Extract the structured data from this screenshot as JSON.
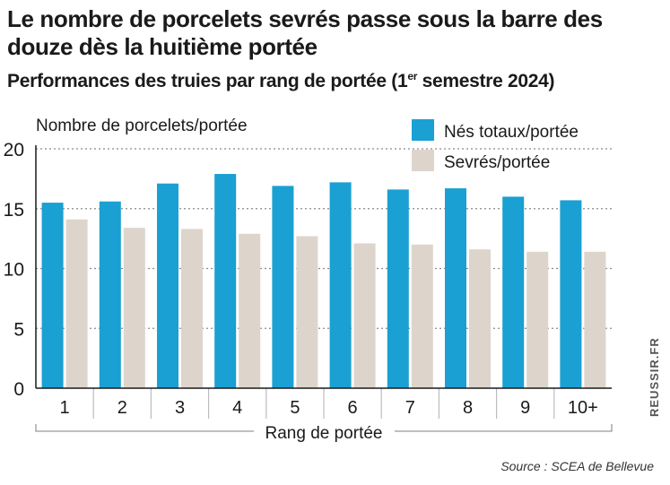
{
  "title": "Le nombre de porcelets sevrés passe sous la barre des douze dès la huitième portée",
  "subtitle_pre": "Performances des truies par rang de portée (1",
  "subtitle_sup": "er",
  "subtitle_post": " semestre 2024)",
  "source": "Source : SCEA de Bellevue",
  "credit": "REUSSIR.FR",
  "colors": {
    "nes": "#1aa0d2",
    "sevres": "#ddd5cc"
  },
  "chart_data": {
    "type": "bar",
    "ylabel": "Nombre de porcelets/portée",
    "xlabel": "Rang de portée",
    "ylim": [
      0,
      20
    ],
    "yticks": [
      "0",
      "5",
      "10",
      "15",
      "20"
    ],
    "grid": true,
    "legend_position": "top-right",
    "categories": [
      "1",
      "2",
      "3",
      "4",
      "5",
      "6",
      "7",
      "8",
      "9",
      "10+"
    ],
    "series": [
      {
        "name": "Nés totaux/portée",
        "values": [
          15.5,
          15.6,
          17.1,
          17.9,
          16.9,
          17.2,
          16.6,
          16.7,
          16.0,
          15.7
        ]
      },
      {
        "name": "Sevrés/portée",
        "values": [
          14.1,
          13.4,
          13.3,
          12.9,
          12.7,
          12.1,
          12.0,
          11.6,
          11.4,
          11.4
        ]
      }
    ]
  }
}
